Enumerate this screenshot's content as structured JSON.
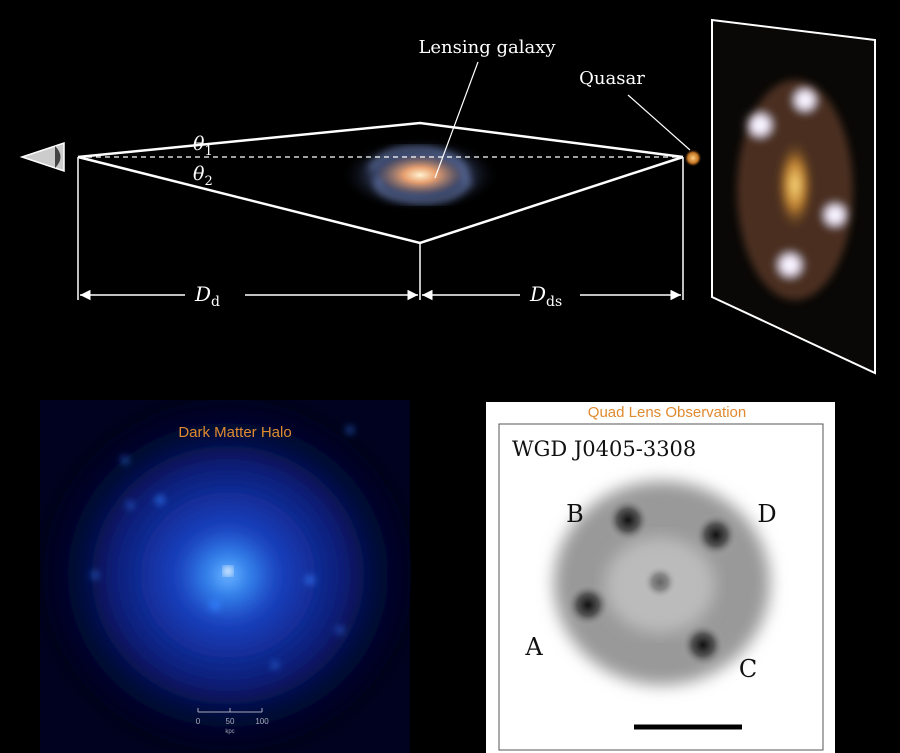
{
  "diagram": {
    "labels": {
      "lensing_galaxy": "Lensing galaxy",
      "quasar": "Quasar"
    },
    "angles": [
      {
        "symbol": "θ",
        "subscript": "1"
      },
      {
        "symbol": "θ",
        "subscript": "2"
      }
    ],
    "distances": [
      {
        "symbol": "D",
        "subscript": "d"
      },
      {
        "symbol": "D",
        "subscript": "ds"
      }
    ]
  },
  "halo": {
    "title": "Dark Matter Halo",
    "scale_ticks": [
      "0",
      "50",
      "100"
    ],
    "scale_unit": "kpc"
  },
  "observation": {
    "title": "Quad Lens Observation",
    "object": "WGD J0405-3308",
    "images": [
      "A",
      "B",
      "C",
      "D"
    ]
  }
}
